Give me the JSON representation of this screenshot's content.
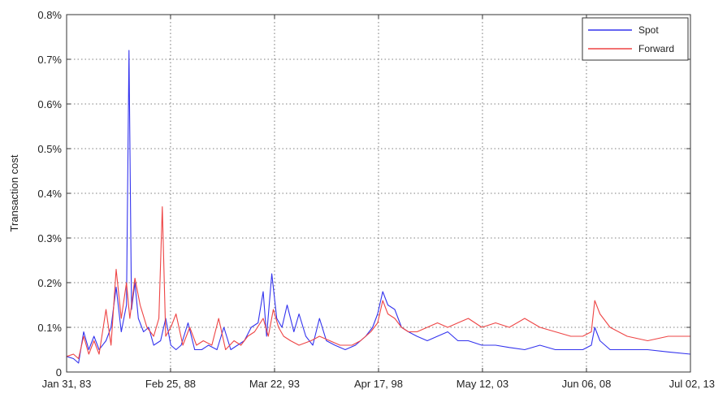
{
  "chart_data": {
    "type": "line",
    "ylabel": "Transaction cost",
    "ylim": [
      0,
      0.8
    ],
    "yticks": [
      "0",
      "0.1%",
      "0.2%",
      "0.3%",
      "0.4%",
      "0.5%",
      "0.6%",
      "0.7%",
      "0.8%"
    ],
    "x_start": "1983-01-31",
    "x_end": "2013-07-02",
    "xticks": [
      {
        "date": "1983-01-31",
        "label": "Jan 31, 83"
      },
      {
        "date": "1988-02-25",
        "label": "Feb 25, 88"
      },
      {
        "date": "1993-03-22",
        "label": "Mar 22, 93"
      },
      {
        "date": "1998-04-17",
        "label": "Apr 17, 98"
      },
      {
        "date": "2003-05-12",
        "label": "May 12, 03"
      },
      {
        "date": "2008-06-06",
        "label": "Jun 06, 08"
      },
      {
        "date": "2013-07-02",
        "label": "Jul 02, 13"
      }
    ],
    "grid": true,
    "legend_position": "top-right",
    "series": [
      {
        "name": "Spot",
        "color": "#3333ee",
        "points": [
          [
            "1983-01-31",
            0.035
          ],
          [
            "1983-06-01",
            0.03
          ],
          [
            "1983-09-01",
            0.02
          ],
          [
            "1983-12-01",
            0.09
          ],
          [
            "1984-03-01",
            0.05
          ],
          [
            "1984-06-01",
            0.08
          ],
          [
            "1984-09-01",
            0.05
          ],
          [
            "1985-01-01",
            0.07
          ],
          [
            "1985-04-01",
            0.1
          ],
          [
            "1985-07-01",
            0.19
          ],
          [
            "1985-10-01",
            0.09
          ],
          [
            "1986-01-01",
            0.15
          ],
          [
            "1986-02-15",
            0.72
          ],
          [
            "1986-04-01",
            0.14
          ],
          [
            "1986-06-01",
            0.2
          ],
          [
            "1986-08-01",
            0.12
          ],
          [
            "1986-11-01",
            0.09
          ],
          [
            "1987-02-01",
            0.1
          ],
          [
            "1987-05-01",
            0.06
          ],
          [
            "1987-09-01",
            0.07
          ],
          [
            "1987-12-01",
            0.12
          ],
          [
            "1988-03-01",
            0.06
          ],
          [
            "1988-06-01",
            0.05
          ],
          [
            "1988-09-01",
            0.06
          ],
          [
            "1989-01-01",
            0.11
          ],
          [
            "1989-05-01",
            0.05
          ],
          [
            "1989-09-01",
            0.05
          ],
          [
            "1990-01-01",
            0.06
          ],
          [
            "1990-06-01",
            0.05
          ],
          [
            "1990-10-01",
            0.1
          ],
          [
            "1991-02-01",
            0.05
          ],
          [
            "1991-06-01",
            0.06
          ],
          [
            "1991-10-01",
            0.07
          ],
          [
            "1992-02-01",
            0.1
          ],
          [
            "1992-06-01",
            0.11
          ],
          [
            "1992-09-01",
            0.18
          ],
          [
            "1992-11-01",
            0.08
          ],
          [
            "1993-02-01",
            0.22
          ],
          [
            "1993-05-01",
            0.12
          ],
          [
            "1993-08-01",
            0.1
          ],
          [
            "1993-11-01",
            0.15
          ],
          [
            "1994-03-01",
            0.09
          ],
          [
            "1994-06-01",
            0.13
          ],
          [
            "1994-10-01",
            0.08
          ],
          [
            "1995-02-01",
            0.06
          ],
          [
            "1995-06-01",
            0.12
          ],
          [
            "1995-10-01",
            0.07
          ],
          [
            "1996-03-01",
            0.06
          ],
          [
            "1996-09-01",
            0.05
          ],
          [
            "1997-03-01",
            0.06
          ],
          [
            "1997-09-01",
            0.08
          ],
          [
            "1998-01-01",
            0.1
          ],
          [
            "1998-04-01",
            0.13
          ],
          [
            "1998-07-01",
            0.18
          ],
          [
            "1998-10-01",
            0.15
          ],
          [
            "1999-02-01",
            0.14
          ],
          [
            "1999-06-01",
            0.1
          ],
          [
            "1999-10-01",
            0.09
          ],
          [
            "2000-03-01",
            0.08
          ],
          [
            "2000-09-01",
            0.07
          ],
          [
            "2001-03-01",
            0.08
          ],
          [
            "2001-09-01",
            0.09
          ],
          [
            "2002-03-01",
            0.07
          ],
          [
            "2002-09-01",
            0.07
          ],
          [
            "2003-05-01",
            0.06
          ],
          [
            "2004-01-01",
            0.06
          ],
          [
            "2004-09-01",
            0.055
          ],
          [
            "2005-06-01",
            0.05
          ],
          [
            "2006-03-01",
            0.06
          ],
          [
            "2006-12-01",
            0.05
          ],
          [
            "2007-09-01",
            0.05
          ],
          [
            "2008-04-01",
            0.05
          ],
          [
            "2008-09-01",
            0.06
          ],
          [
            "2008-11-01",
            0.1
          ],
          [
            "2009-02-01",
            0.07
          ],
          [
            "2009-08-01",
            0.05
          ],
          [
            "2010-06-01",
            0.05
          ],
          [
            "2011-06-01",
            0.05
          ],
          [
            "2012-06-01",
            0.045
          ],
          [
            "2013-07-02",
            0.04
          ]
        ]
      },
      {
        "name": "Forward",
        "color": "#ee4444",
        "points": [
          [
            "1983-01-31",
            0.035
          ],
          [
            "1983-06-01",
            0.04
          ],
          [
            "1983-09-01",
            0.03
          ],
          [
            "1983-12-01",
            0.08
          ],
          [
            "1984-03-01",
            0.04
          ],
          [
            "1984-06-01",
            0.07
          ],
          [
            "1984-09-01",
            0.04
          ],
          [
            "1985-01-01",
            0.14
          ],
          [
            "1985-04-01",
            0.06
          ],
          [
            "1985-07-01",
            0.23
          ],
          [
            "1985-10-01",
            0.12
          ],
          [
            "1986-01-01",
            0.2
          ],
          [
            "1986-03-01",
            0.12
          ],
          [
            "1986-06-01",
            0.21
          ],
          [
            "1986-09-01",
            0.15
          ],
          [
            "1987-01-01",
            0.1
          ],
          [
            "1987-05-01",
            0.08
          ],
          [
            "1987-08-01",
            0.12
          ],
          [
            "1987-10-01",
            0.37
          ],
          [
            "1987-12-01",
            0.08
          ],
          [
            "1988-03-01",
            0.1
          ],
          [
            "1988-06-01",
            0.13
          ],
          [
            "1988-10-01",
            0.06
          ],
          [
            "1989-02-01",
            0.1
          ],
          [
            "1989-06-01",
            0.06
          ],
          [
            "1989-10-01",
            0.07
          ],
          [
            "1990-03-01",
            0.06
          ],
          [
            "1990-07-01",
            0.12
          ],
          [
            "1990-11-01",
            0.05
          ],
          [
            "1991-04-01",
            0.07
          ],
          [
            "1991-08-01",
            0.06
          ],
          [
            "1991-12-01",
            0.08
          ],
          [
            "1992-04-01",
            0.09
          ],
          [
            "1992-09-01",
            0.12
          ],
          [
            "1992-12-01",
            0.08
          ],
          [
            "1993-03-01",
            0.14
          ],
          [
            "1993-06-01",
            0.1
          ],
          [
            "1993-09-01",
            0.08
          ],
          [
            "1994-01-01",
            0.07
          ],
          [
            "1994-06-01",
            0.06
          ],
          [
            "1995-01-01",
            0.07
          ],
          [
            "1995-06-01",
            0.08
          ],
          [
            "1995-12-01",
            0.07
          ],
          [
            "1996-06-01",
            0.06
          ],
          [
            "1997-01-01",
            0.06
          ],
          [
            "1997-06-01",
            0.07
          ],
          [
            "1997-12-01",
            0.09
          ],
          [
            "1998-04-01",
            0.11
          ],
          [
            "1998-07-01",
            0.16
          ],
          [
            "1998-10-01",
            0.13
          ],
          [
            "1999-02-01",
            0.12
          ],
          [
            "1999-06-01",
            0.1
          ],
          [
            "1999-10-01",
            0.09
          ],
          [
            "2000-03-01",
            0.09
          ],
          [
            "2000-09-01",
            0.1
          ],
          [
            "2001-03-01",
            0.11
          ],
          [
            "2001-09-01",
            0.1
          ],
          [
            "2002-03-01",
            0.11
          ],
          [
            "2002-09-01",
            0.12
          ],
          [
            "2003-05-01",
            0.1
          ],
          [
            "2004-01-01",
            0.11
          ],
          [
            "2004-09-01",
            0.1
          ],
          [
            "2005-06-01",
            0.12
          ],
          [
            "2006-03-01",
            0.1
          ],
          [
            "2006-12-01",
            0.09
          ],
          [
            "2007-09-01",
            0.08
          ],
          [
            "2008-04-01",
            0.08
          ],
          [
            "2008-09-01",
            0.09
          ],
          [
            "2008-11-01",
            0.16
          ],
          [
            "2009-02-01",
            0.13
          ],
          [
            "2009-08-01",
            0.1
          ],
          [
            "2010-06-01",
            0.08
          ],
          [
            "2011-06-01",
            0.07
          ],
          [
            "2012-06-01",
            0.08
          ],
          [
            "2013-07-02",
            0.08
          ]
        ]
      }
    ]
  }
}
